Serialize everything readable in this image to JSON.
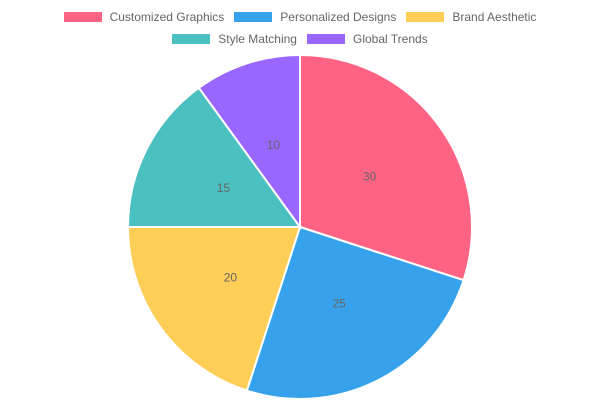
{
  "chart_data": {
    "type": "pie",
    "title": "",
    "categories": [
      "Customized Graphics",
      "Personalized Designs",
      "Brand Aesthetic",
      "Style Matching",
      "Global Trends"
    ],
    "values": [
      30,
      25,
      20,
      15,
      10
    ],
    "colors": [
      "#ff6384",
      "#36a2eb",
      "#ffce56",
      "#4bc0c0",
      "#9966ff"
    ],
    "legend_position": "top",
    "data_labels": [
      "30",
      "25",
      "20",
      "15",
      "10"
    ]
  },
  "legend": {
    "items": [
      {
        "label": "Customized Graphics",
        "color": "#ff6384"
      },
      {
        "label": "Personalized Designs",
        "color": "#36a2eb"
      },
      {
        "label": "Brand Aesthetic",
        "color": "#ffce56"
      },
      {
        "label": "Style Matching",
        "color": "#4bc0c0"
      },
      {
        "label": "Global Trends",
        "color": "#9966ff"
      }
    ]
  }
}
